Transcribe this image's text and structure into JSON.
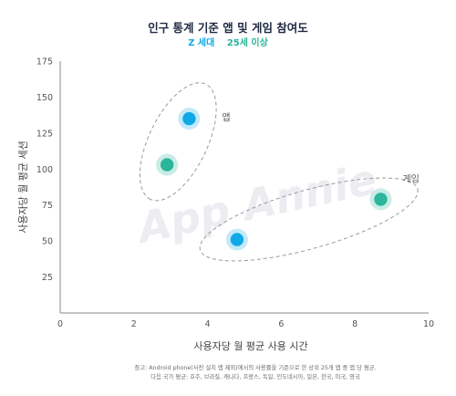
{
  "chart_data": {
    "type": "scatter",
    "title": "인구 통계 기준 앱 및 게임 참여도",
    "subtitle": [
      {
        "text": "Z 세대",
        "color": "#10a9e8"
      },
      {
        "text": "25세 이상",
        "color": "#2bb59a"
      }
    ],
    "xlabel": "사용자당 월 평균 사용 시간",
    "ylabel": "사용자당 월 평균 세션",
    "xlim": [
      0,
      10
    ],
    "ylim": [
      0,
      175
    ],
    "xticks": [
      "0",
      "2",
      "4",
      "6",
      "8",
      "10"
    ],
    "yticks": [
      "25",
      "50",
      "75",
      "100",
      "125",
      "150",
      "175"
    ],
    "grid": false,
    "watermark": "App Annie",
    "groups": [
      {
        "name": "앱",
        "points": [
          {
            "x": 3.5,
            "y": 135,
            "series": "Z 세대"
          },
          {
            "x": 2.9,
            "y": 103,
            "series": "25세 이상"
          }
        ]
      },
      {
        "name": "게임",
        "points": [
          {
            "x": 4.8,
            "y": 51,
            "series": "Z 세대"
          },
          {
            "x": 8.7,
            "y": 79,
            "series": "25세 이상"
          }
        ]
      }
    ],
    "series_colors": {
      "Z 세대": "#10a9e8",
      "25세 이상": "#2bb59a"
    }
  },
  "footnote": [
    "참고: Android phone(사전 설치 앱 제외)에서의 사용률을 기준으로 한 상위 25개 앱 중 앱 당 평균.",
    "다음 국가 평균: 호주, 브라질, 캐나다, 프랑스, 독일, 인도네시아, 일본, 한국, 미국, 영국"
  ]
}
